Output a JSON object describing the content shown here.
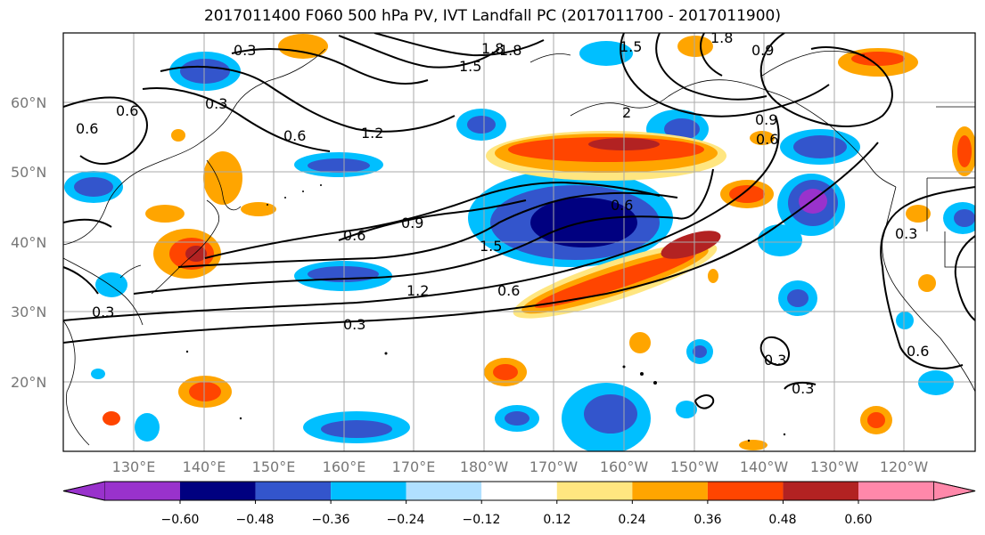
{
  "title": "2017011400 F060 500 hPa PV, IVT Landfall PC (2017011700 - 2017011900)",
  "map": {
    "lat_labels": [
      "60°N",
      "50°N",
      "40°N",
      "30°N",
      "20°N"
    ],
    "lon_labels": [
      "130°E",
      "140°E",
      "150°E",
      "160°E",
      "170°E",
      "180°W",
      "170°W",
      "160°W",
      "150°W",
      "140°W",
      "130°W",
      "120°W"
    ],
    "contour_labels": [
      "1.8",
      "1.8",
      "1.5",
      "1.5",
      "0.9",
      "1.2",
      "0.6",
      "0.3",
      "0.6",
      "0.6",
      "0.9",
      "0.6",
      "1.5",
      "1.2",
      "0.6",
      "0.3",
      "0.9",
      "0.6",
      "0.3",
      "0.3",
      "0.6",
      "0.3",
      "0.3",
      "1.8",
      "2",
      "0.6",
      "0.3"
    ],
    "shading_colors": {
      "neg_060": "#9932cc",
      "neg_048": "#000080",
      "neg_036": "#3355cc",
      "neg_024": "#00bfff",
      "neg_012": "#b0e0ff",
      "pos_012": "#ffe680",
      "pos_024": "#ffa500",
      "pos_036": "#ff4500",
      "pos_048": "#b22222",
      "pos_060": "#ff88aa"
    }
  },
  "colorbar": {
    "ticks": [
      "−0.60",
      "−0.48",
      "−0.36",
      "−0.24",
      "−0.12",
      "0.12",
      "0.24",
      "0.36",
      "0.48",
      "0.60"
    ],
    "colors": [
      "#9932cc",
      "#000080",
      "#3355cc",
      "#00bfff",
      "#b0e0ff",
      "#ffffff",
      "#ffe680",
      "#ffa500",
      "#ff4500",
      "#b22222",
      "#ff88aa"
    ]
  }
}
